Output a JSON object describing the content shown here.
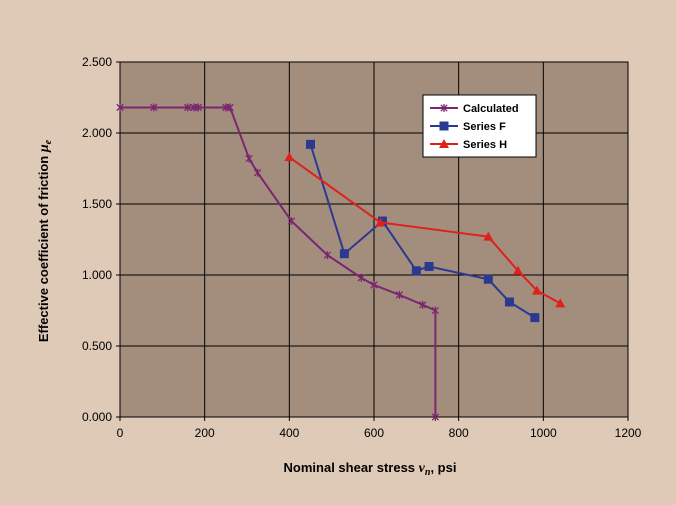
{
  "chart_data": {
    "type": "line",
    "xlabel": "Nominal shear stress",
    "xlabel_symbol": "v",
    "xlabel_subscript": "n",
    "xlabel_unit": ", psi",
    "ylabel": "Effective coefficient of friction",
    "ylabel_symbol": "μ",
    "ylabel_subscript": "e",
    "xlim": [
      0,
      1200
    ],
    "ylim": [
      0,
      2.5
    ],
    "x_ticks": [
      "0",
      "200",
      "400",
      "600",
      "800",
      "1000",
      "1200"
    ],
    "y_ticks": [
      "0.000",
      "0.500",
      "1.000",
      "1.500",
      "2.000",
      "2.500"
    ],
    "x_tick_values": [
      0,
      200,
      400,
      600,
      800,
      1000,
      1200
    ],
    "y_tick_values": [
      0,
      0.5,
      1.0,
      1.5,
      2.0,
      2.5
    ],
    "grid": true,
    "legend_position": "top-right",
    "plot_background": "#a38e7e",
    "series": [
      {
        "name": "Calculated",
        "color": "#7b2670",
        "marker": "star",
        "x": [
          0,
          80,
          160,
          175,
          185,
          250,
          260,
          305,
          325,
          405,
          490,
          570,
          600,
          660,
          715,
          745,
          745
        ],
        "y": [
          2.18,
          2.18,
          2.18,
          2.18,
          2.18,
          2.18,
          2.18,
          1.82,
          1.72,
          1.38,
          1.14,
          0.98,
          0.93,
          0.86,
          0.79,
          0.75,
          0.0
        ]
      },
      {
        "name": "Series F",
        "color": "#2b3990",
        "marker": "square",
        "x": [
          450,
          530,
          620,
          700,
          730,
          870,
          920,
          980
        ],
        "y": [
          1.92,
          1.15,
          1.38,
          1.03,
          1.06,
          0.97,
          0.81,
          0.7
        ]
      },
      {
        "name": "Series H",
        "color": "#e0201b",
        "marker": "triangle",
        "x": [
          400,
          615,
          870,
          940,
          985,
          1040
        ],
        "y": [
          1.83,
          1.37,
          1.27,
          1.03,
          0.89,
          0.8
        ]
      }
    ]
  }
}
